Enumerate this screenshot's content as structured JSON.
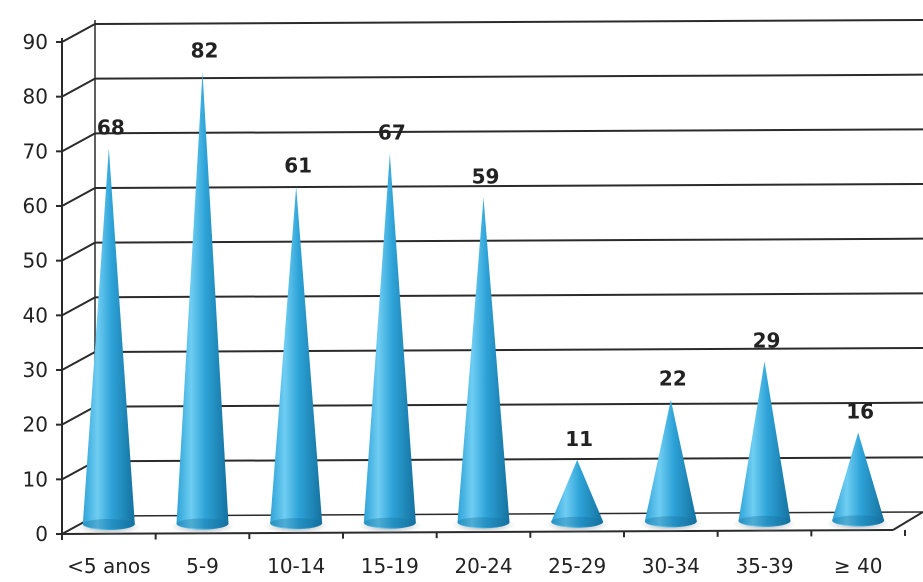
{
  "chart_data": {
    "type": "bar",
    "bar_shape": "cone-3d",
    "categories": [
      "<5 anos",
      "5-9",
      "10-14",
      "15-19",
      "20-24",
      "25-29",
      "30-34",
      "35-39",
      "≥ 40"
    ],
    "values": [
      68,
      82,
      61,
      67,
      59,
      11,
      22,
      29,
      16
    ],
    "ylim": [
      0,
      90
    ],
    "yticks": [
      0,
      10,
      20,
      30,
      40,
      50,
      60,
      70,
      80,
      90
    ],
    "grid": true,
    "title": "",
    "xlabel": "",
    "ylabel": "",
    "colors": {
      "bar": "#2ea3d8",
      "bar_highlight": "#6fcdf2",
      "bar_shadow": "#14719f",
      "gridline": "#2b2b2b",
      "text": "#222222"
    }
  }
}
